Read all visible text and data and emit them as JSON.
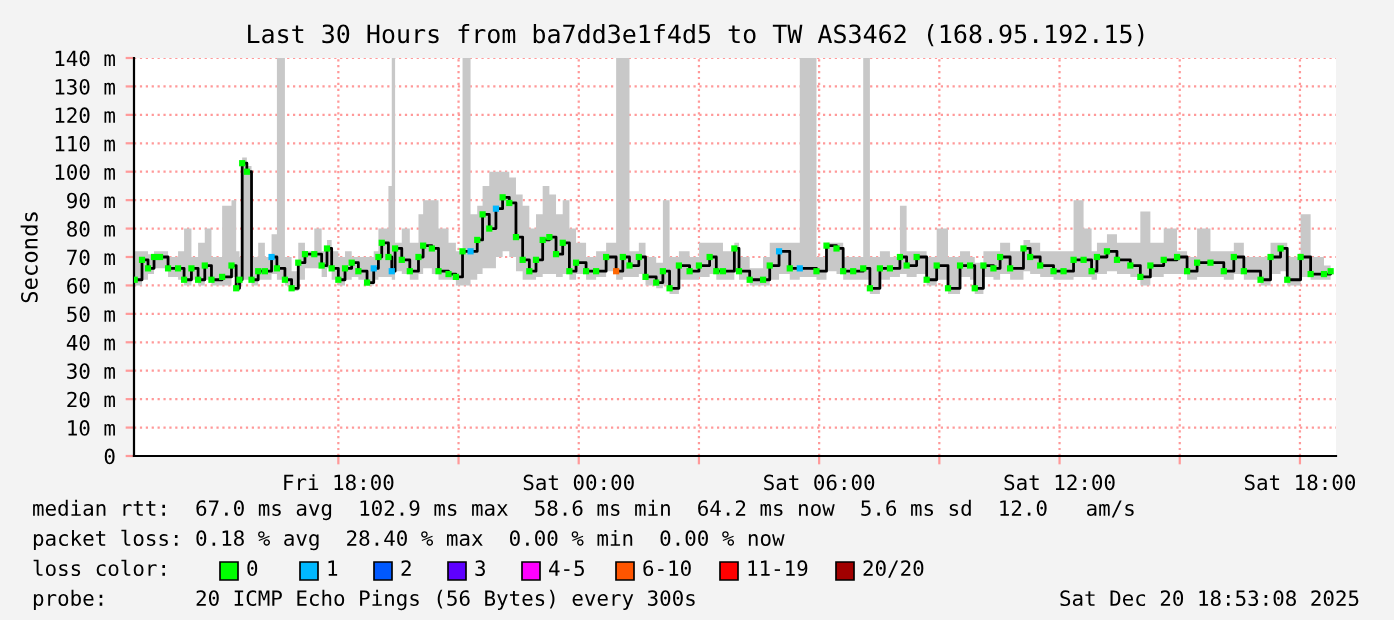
{
  "chart_data": {
    "type": "step",
    "title": "Last 30 Hours from ba7dd3e1f4d5 to TW AS3462 (168.95.192.15)",
    "ylabel": "Seconds",
    "xlim": [
      "2025-12-19T12:54",
      "2025-12-20T18:54"
    ],
    "ylim": [
      0,
      140
    ],
    "xticks": [
      {
        "value": "2025-12-19T18:00",
        "label": "Fri 18:00"
      },
      {
        "value": "2025-12-19T21:00",
        "label": null
      },
      {
        "value": "2025-12-20T00:00",
        "label": "Sat 00:00"
      },
      {
        "value": "2025-12-20T03:00",
        "label": null
      },
      {
        "value": "2025-12-20T06:00",
        "label": "Sat 06:00"
      },
      {
        "value": "2025-12-20T09:00",
        "label": null
      },
      {
        "value": "2025-12-20T12:00",
        "label": "Sat 12:00"
      },
      {
        "value": "2025-12-20T15:00",
        "label": null
      },
      {
        "value": "2025-12-20T18:00",
        "label": "Sat 18:00"
      }
    ],
    "yticks": [
      0,
      {
        "value": 10,
        "label": "10 m"
      },
      {
        "value": 20,
        "label": "20 m"
      },
      {
        "value": 30,
        "label": "30 m"
      },
      {
        "value": 40,
        "label": "40 m"
      },
      {
        "value": 50,
        "label": "50 m"
      },
      {
        "value": 60,
        "label": "60 m"
      },
      {
        "value": 70,
        "label": "70 m"
      },
      {
        "value": 80,
        "label": "80 m"
      },
      {
        "value": 90,
        "label": "90 m"
      },
      {
        "value": 100,
        "label": "100 m"
      },
      {
        "value": 110,
        "label": "110 m"
      },
      {
        "value": 120,
        "label": "120 m"
      },
      {
        "value": 130,
        "label": "130 m"
      },
      {
        "value": 140,
        "label": "140 m"
      }
    ],
    "grid": true,
    "legend": false,
    "marker": "square",
    "line_style": "solid",
    "series": [
      {
        "color": "#000000",
        "x": [
          "2025-12-19T12:55",
          "2025-12-19T13:06",
          "2025-12-19T13:15",
          "2025-12-19T13:24",
          "2025-12-19T13:33",
          "2025-12-19T13:45",
          "2025-12-19T14:00",
          "2025-12-19T14:09",
          "2025-12-19T14:20",
          "2025-12-19T14:30",
          "2025-12-19T14:40",
          "2025-12-19T14:50",
          "2025-12-19T15:06",
          "2025-12-19T15:20",
          "2025-12-19T15:27",
          "2025-12-19T15:32",
          "2025-12-19T15:36",
          "2025-12-19T15:43",
          "2025-12-19T15:50",
          "2025-12-19T16:00",
          "2025-12-19T16:10",
          "2025-12-19T16:20",
          "2025-12-19T16:28",
          "2025-12-19T16:40",
          "2025-12-19T16:50",
          "2025-12-19T17:00",
          "2025-12-19T17:10",
          "2025-12-19T17:24",
          "2025-12-19T17:35",
          "2025-12-19T17:43",
          "2025-12-19T17:50",
          "2025-12-19T18:00",
          "2025-12-19T18:10",
          "2025-12-19T18:20",
          "2025-12-19T18:30",
          "2025-12-19T18:43",
          "2025-12-19T18:53",
          "2025-12-19T19:00",
          "2025-12-19T19:05",
          "2025-12-19T19:15",
          "2025-12-19T19:20",
          "2025-12-19T19:25",
          "2025-12-19T19:35",
          "2025-12-19T19:47",
          "2025-12-19T20:00",
          "2025-12-19T20:07",
          "2025-12-19T20:20",
          "2025-12-19T20:30",
          "2025-12-19T20:45",
          "2025-12-19T20:56",
          "2025-12-19T21:06",
          "2025-12-19T21:18",
          "2025-12-19T21:28",
          "2025-12-19T21:36",
          "2025-12-19T21:46",
          "2025-12-19T21:56",
          "2025-12-19T22:06",
          "2025-12-19T22:16",
          "2025-12-19T22:26",
          "2025-12-19T22:36",
          "2025-12-19T22:46",
          "2025-12-19T22:56",
          "2025-12-19T23:06",
          "2025-12-19T23:16",
          "2025-12-19T23:26",
          "2025-12-19T23:36",
          "2025-12-19T23:46",
          "2025-12-19T23:56",
          "2025-12-20T00:11",
          "2025-12-20T00:26",
          "2025-12-20T00:41",
          "2025-12-20T00:56",
          "2025-12-20T01:06",
          "2025-12-20T01:16",
          "2025-12-20T01:30",
          "2025-12-20T01:40",
          "2025-12-20T01:56",
          "2025-12-20T02:06",
          "2025-12-20T02:16",
          "2025-12-20T02:30",
          "2025-12-20T02:46",
          "2025-12-20T03:00",
          "2025-12-20T03:16",
          "2025-12-20T03:26",
          "2025-12-20T03:36",
          "2025-12-20T03:53",
          "2025-12-20T04:00",
          "2025-12-20T04:16",
          "2025-12-20T04:36",
          "2025-12-20T04:46",
          "2025-12-20T05:00",
          "2025-12-20T05:16",
          "2025-12-20T05:31",
          "2025-12-20T05:56",
          "2025-12-20T06:11",
          "2025-12-20T06:26",
          "2025-12-20T06:36",
          "2025-12-20T06:51",
          "2025-12-20T07:06",
          "2025-12-20T07:16",
          "2025-12-20T07:31",
          "2025-12-20T07:46",
          "2025-12-20T08:01",
          "2025-12-20T08:11",
          "2025-12-20T08:26",
          "2025-12-20T08:41",
          "2025-12-20T08:56",
          "2025-12-20T09:13",
          "2025-12-20T09:31",
          "2025-12-20T09:46",
          "2025-12-20T09:53",
          "2025-12-20T10:06",
          "2025-12-20T10:21",
          "2025-12-20T10:31",
          "2025-12-20T10:46",
          "2025-12-20T11:06",
          "2025-12-20T11:16",
          "2025-12-20T11:31",
          "2025-12-20T11:51",
          "2025-12-20T12:06",
          "2025-12-20T12:21",
          "2025-12-20T12:36",
          "2025-12-20T12:48",
          "2025-12-20T12:56",
          "2025-12-20T13:11",
          "2025-12-20T13:26",
          "2025-12-20T13:46",
          "2025-12-20T14:01",
          "2025-12-20T14:16",
          "2025-12-20T14:36",
          "2025-12-20T14:56",
          "2025-12-20T15:11",
          "2025-12-20T15:26",
          "2025-12-20T15:46",
          "2025-12-20T16:06",
          "2025-12-20T16:21",
          "2025-12-20T16:36",
          "2025-12-20T17:01",
          "2025-12-20T17:16",
          "2025-12-20T17:31",
          "2025-12-20T17:41",
          "2025-12-20T18:01",
          "2025-12-20T18:16",
          "2025-12-20T18:36",
          "2025-12-20T18:46"
        ],
        "values": [
          62,
          69,
          66,
          70,
          70,
          66,
          66,
          62,
          66,
          62,
          67,
          62,
          63,
          67,
          59,
          62,
          103,
          100,
          62,
          65,
          65,
          70,
          66,
          62,
          59,
          68,
          71,
          71,
          67,
          73,
          66,
          62,
          66,
          68,
          65,
          61,
          66,
          70,
          75,
          70,
          65,
          73,
          69,
          65,
          70,
          74,
          73,
          65,
          64,
          63,
          72,
          72,
          76,
          85,
          80,
          87,
          91,
          89,
          77,
          69,
          65,
          69,
          76,
          77,
          71,
          75,
          65,
          68,
          65,
          65,
          70,
          65,
          70,
          67,
          70,
          63,
          61,
          65,
          59,
          67,
          65,
          67,
          70,
          65,
          65,
          73,
          65,
          62,
          62,
          67,
          72,
          66,
          66,
          65,
          74,
          73,
          65,
          65,
          66,
          59,
          66,
          66,
          70,
          67,
          70,
          62,
          67,
          59,
          67,
          67,
          59,
          67,
          66,
          70,
          66,
          73,
          70,
          67,
          65,
          65,
          69,
          69,
          65,
          70,
          72,
          69,
          67,
          63,
          67,
          69,
          70,
          65,
          68,
          68,
          65,
          70,
          65,
          62,
          70,
          73,
          62,
          70,
          64,
          64,
          65
        ],
        "upper": [
          72,
          72,
          71,
          72,
          72,
          70,
          72,
          80,
          70,
          75,
          80,
          70,
          88,
          90,
          72,
          70,
          105,
          102,
          70,
          75,
          70,
          78,
          140,
          70,
          65,
          75,
          72,
          80,
          72,
          76,
          72,
          70,
          72,
          70,
          70,
          70,
          72,
          80,
          80,
          95,
          140,
          75,
          80,
          75,
          85,
          90,
          90,
          80,
          75,
          72,
          140,
          85,
          88,
          95,
          100,
          100,
          100,
          98,
          92,
          88,
          80,
          85,
          95,
          92,
          85,
          90,
          80,
          75,
          70,
          72,
          75,
          140,
          140,
          72,
          75,
          70,
          68,
          90,
          70,
          72,
          70,
          75,
          75,
          75,
          72,
          75,
          70,
          66,
          70,
          75,
          75,
          75,
          140,
          70,
          75,
          75,
          70,
          70,
          140,
          70,
          72,
          70,
          88,
          72,
          72,
          70,
          80,
          70,
          72,
          70,
          68,
          72,
          72,
          75,
          72,
          76,
          75,
          72,
          72,
          72,
          90,
          80,
          72,
          75,
          78,
          75,
          75,
          86,
          75,
          80,
          72,
          70,
          80,
          72,
          72,
          75,
          70,
          70,
          75,
          75,
          70,
          85,
          70,
          67,
          68
        ],
        "lower": [
          60,
          62,
          64,
          66,
          66,
          63,
          62,
          60,
          62,
          60,
          62,
          60,
          60,
          63,
          58,
          60,
          62,
          62,
          60,
          62,
          62,
          64,
          62,
          60,
          58,
          62,
          66,
          66,
          63,
          66,
          62,
          60,
          62,
          63,
          62,
          60,
          62,
          63,
          63,
          63,
          62,
          65,
          64,
          62,
          64,
          66,
          64,
          62,
          62,
          60,
          60,
          62,
          64,
          66,
          66,
          70,
          72,
          70,
          65,
          62,
          62,
          63,
          64,
          64,
          63,
          64,
          62,
          64,
          62,
          63,
          65,
          62,
          63,
          63,
          64,
          60,
          59,
          60,
          57,
          62,
          62,
          63,
          64,
          62,
          62,
          65,
          62,
          60,
          60,
          62,
          64,
          62,
          63,
          62,
          65,
          64,
          62,
          62,
          62,
          57,
          62,
          63,
          64,
          63,
          64,
          60,
          62,
          57,
          63,
          62,
          57,
          63,
          62,
          64,
          62,
          65,
          64,
          63,
          62,
          62,
          63,
          63,
          62,
          64,
          65,
          64,
          63,
          60,
          63,
          64,
          64,
          62,
          63,
          63,
          62,
          64,
          62,
          60,
          64,
          65,
          60,
          63,
          62,
          62,
          63
        ],
        "colors": [
          "#00ff00",
          "#00ff00",
          "#00ff00",
          "#00ff00",
          "#00ff00",
          "#00ff00",
          "#00ff00",
          "#00ff00",
          "#00ff00",
          "#00ff00",
          "#00ff00",
          "#00ff00",
          "#00ff00",
          "#00ff00",
          "#00ff00",
          "#00ff00",
          "#00ff00",
          "#00ff00",
          "#00ff00",
          "#00ff00",
          "#00ff00",
          "#00b8ff",
          "#00ff00",
          "#00ff00",
          "#00ff00",
          "#00ff00",
          "#00ff00",
          "#00ff00",
          "#00ff00",
          "#00ff00",
          "#00ff00",
          "#00ff00",
          "#00ff00",
          "#00ff00",
          "#00ff00",
          "#00ff00",
          "#00b8ff",
          "#00ff00",
          "#00ff00",
          "#00ff00",
          "#00b8ff",
          "#00ff00",
          "#00ff00",
          "#00ff00",
          "#00ff00",
          "#00ff00",
          "#00ff00",
          "#00ff00",
          "#00ff00",
          "#00ff00",
          "#00ff00",
          "#00b8ff",
          "#00ff00",
          "#00ff00",
          "#00ff00",
          "#00b8ff",
          "#00ff00",
          "#00ff00",
          "#00ff00",
          "#00ff00",
          "#00ff00",
          "#00ff00",
          "#00ff00",
          "#00ff00",
          "#00ff00",
          "#00ff00",
          "#00ff00",
          "#00ff00",
          "#00ff00",
          "#00ff00",
          "#00ff00",
          "#ff6600",
          "#00ff00",
          "#00ff00",
          "#00ff00",
          "#00ff00",
          "#00ff00",
          "#00ff00",
          "#00ff00",
          "#00ff00",
          "#00ff00",
          "#00ff00",
          "#00ff00",
          "#00ff00",
          "#00ff00",
          "#00ff00",
          "#00ff00",
          "#00ff00",
          "#00ff00",
          "#00ff00",
          "#00b8ff",
          "#00ff00",
          "#00b8ff",
          "#00ff00",
          "#00ff00",
          "#00ff00",
          "#00ff00",
          "#00ff00",
          "#00ff00",
          "#00ff00",
          "#00ff00",
          "#00ff00",
          "#00ff00",
          "#00ff00",
          "#00ff00",
          "#00ff00",
          "#00ff00",
          "#00ff00",
          "#00ff00",
          "#00ff00",
          "#00ff00",
          "#00ff00",
          "#00ff00",
          "#00ff00",
          "#00ff00",
          "#00ff00",
          "#00ff00",
          "#00ff00",
          "#00ff00",
          "#00ff00",
          "#00ff00",
          "#00ff00",
          "#00ff00",
          "#00ff00",
          "#00ff00",
          "#00ff00",
          "#00ff00",
          "#00ff00",
          "#00ff00",
          "#00ff00",
          "#00ff00",
          "#00ff00",
          "#00ff00",
          "#00ff00",
          "#00ff00",
          "#00ff00",
          "#00ff00",
          "#00ff00",
          "#00ff00",
          "#00ff00",
          "#00ff00",
          "#00ff00",
          "#00ff00",
          "#00ff00",
          "#00ff00"
        ]
      }
    ],
    "annotations": [
      "median rtt:  67.0 ms avg  102.9 ms max  58.6 ms min  64.2 ms now  5.6 ms sd  12.0   am/s",
      "packet loss: 0.18 % avg  28.40 % max  0.00 % min  0.00 % now",
      "loss color:",
      "0",
      "1",
      "2",
      "3",
      "4-5",
      "6-10",
      "11-19",
      "20/20",
      "probe:       20 ICMP Echo Pings (56 Bytes) every 300s",
      "Sat Dec 20 18:53:08 2025"
    ]
  }
}
